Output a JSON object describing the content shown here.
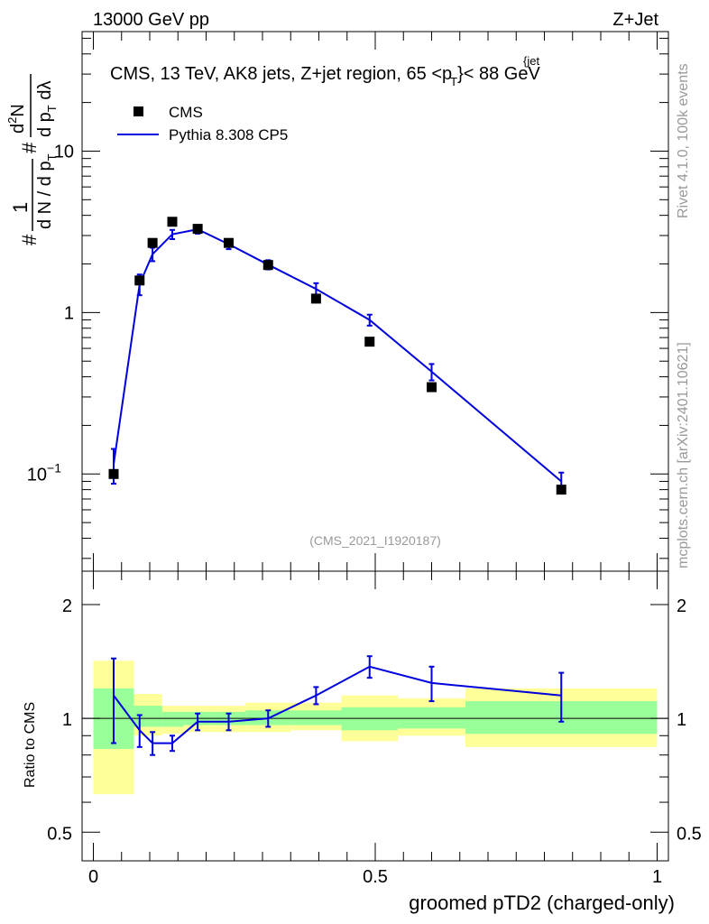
{
  "header": {
    "left": "13000 GeV pp",
    "right": "Z+Jet"
  },
  "side_labels": {
    "rivet": "Rivet 4.1.0,  100k events",
    "mcplots": "mcplots.cern.ch [arXiv:2401.10621]"
  },
  "chart_data": [
    {
      "type": "line",
      "panel": "main",
      "title_parts": {
        "main": "CMS, 13 TeV, AK8 jets, Z+jet region, 65 <p",
        "sub": "T",
        "sup": "{jet",
        "end": "}< 88 GeV"
      },
      "watermark": "(CMS_2021_I1920187)",
      "ylabel_parts": {
        "hash": "#",
        "one": "1",
        "den": "d N / d p",
        "den_sub": "T",
        "num_top": "d",
        "num_sup": "2",
        "num_N": "N",
        "num2": "d p",
        "num2_sub": "T",
        "num2_end": " dλ"
      },
      "yscale": "log",
      "ylim": [
        0.025,
        55
      ],
      "xlim": [
        -0.02,
        1.02
      ],
      "ytick_labels": [
        {
          "v": 0.1,
          "base": "10",
          "exp": "−1"
        },
        {
          "v": 1,
          "base": "1",
          "exp": ""
        },
        {
          "v": 10,
          "base": "10",
          "exp": ""
        }
      ],
      "legend": {
        "position": "top-left",
        "entries": [
          "CMS",
          "Pythia 8.308 CP5"
        ]
      },
      "cms_points": [
        {
          "x": 0.036,
          "y": 0.1
        },
        {
          "x": 0.082,
          "y": 1.58
        },
        {
          "x": 0.105,
          "y": 2.7
        },
        {
          "x": 0.14,
          "y": 3.65
        },
        {
          "x": 0.185,
          "y": 3.3
        },
        {
          "x": 0.24,
          "y": 2.7
        },
        {
          "x": 0.31,
          "y": 1.97
        },
        {
          "x": 0.395,
          "y": 1.22
        },
        {
          "x": 0.49,
          "y": 0.66
        },
        {
          "x": 0.6,
          "y": 0.345
        },
        {
          "x": 0.83,
          "y": 0.08
        }
      ],
      "pythia": [
        {
          "x": 0.036,
          "y": 0.115,
          "err": 0.028
        },
        {
          "x": 0.082,
          "y": 1.5,
          "err": 0.22
        },
        {
          "x": 0.105,
          "y": 2.3,
          "err": 0.22
        },
        {
          "x": 0.14,
          "y": 3.05,
          "err": 0.2
        },
        {
          "x": 0.185,
          "y": 3.28,
          "err": 0.2
        },
        {
          "x": 0.24,
          "y": 2.65,
          "err": 0.18
        },
        {
          "x": 0.31,
          "y": 1.98,
          "err": 0.13
        },
        {
          "x": 0.395,
          "y": 1.4,
          "err": 0.12
        },
        {
          "x": 0.49,
          "y": 0.9,
          "err": 0.07
        },
        {
          "x": 0.6,
          "y": 0.43,
          "err": 0.05
        },
        {
          "x": 0.83,
          "y": 0.09,
          "err": 0.012
        }
      ]
    },
    {
      "type": "line",
      "panel": "ratio",
      "ylabel": "Ratio to CMS",
      "xlabel": "groomed pTD2 (charged-only)",
      "yscale": "log",
      "ylim": [
        0.42,
        2.45
      ],
      "xlim": [
        -0.02,
        1.02
      ],
      "ytick_labels": [
        {
          "v": 0.5,
          "label": "0.5"
        },
        {
          "v": 1,
          "label": "1"
        },
        {
          "v": 2,
          "label": "2"
        }
      ],
      "xtick_labels": [
        {
          "v": 0,
          "label": "0"
        },
        {
          "v": 0.5,
          "label": "0.5"
        },
        {
          "v": 1,
          "label": "1"
        }
      ],
      "bands": [
        {
          "x0": 0.0,
          "x1": 0.072,
          "y_lo": 0.63,
          "y_hi": 1.42,
          "g_lo": 0.83,
          "g_hi": 1.2
        },
        {
          "x0": 0.072,
          "x1": 0.122,
          "y_lo": 0.9,
          "y_hi": 1.16,
          "g_lo": 0.95,
          "g_hi": 1.08
        },
        {
          "x0": 0.122,
          "x1": 0.16,
          "y_lo": 0.91,
          "y_hi": 1.08,
          "g_lo": 0.95,
          "g_hi": 1.04
        },
        {
          "x0": 0.16,
          "x1": 0.21,
          "y_lo": 0.92,
          "y_hi": 1.08,
          "g_lo": 0.96,
          "g_hi": 1.04
        },
        {
          "x0": 0.21,
          "x1": 0.27,
          "y_lo": 0.92,
          "y_hi": 1.08,
          "g_lo": 0.96,
          "g_hi": 1.04
        },
        {
          "x0": 0.27,
          "x1": 0.35,
          "y_lo": 0.92,
          "y_hi": 1.1,
          "g_lo": 0.96,
          "g_hi": 1.05
        },
        {
          "x0": 0.35,
          "x1": 0.44,
          "y_lo": 0.93,
          "y_hi": 1.1,
          "g_lo": 0.96,
          "g_hi": 1.05
        },
        {
          "x0": 0.44,
          "x1": 0.54,
          "y_lo": 0.87,
          "y_hi": 1.15,
          "g_lo": 0.93,
          "g_hi": 1.07
        },
        {
          "x0": 0.54,
          "x1": 0.66,
          "y_lo": 0.9,
          "y_hi": 1.13,
          "g_lo": 0.94,
          "g_hi": 1.07
        },
        {
          "x0": 0.66,
          "x1": 1.0,
          "y_lo": 0.84,
          "y_hi": 1.2,
          "g_lo": 0.91,
          "g_hi": 1.11
        }
      ],
      "ratio_points": [
        {
          "x": 0.036,
          "y": 1.15,
          "err": 0.29
        },
        {
          "x": 0.082,
          "y": 0.93,
          "err": 0.09
        },
        {
          "x": 0.105,
          "y": 0.86,
          "err": 0.06
        },
        {
          "x": 0.14,
          "y": 0.86,
          "err": 0.04
        },
        {
          "x": 0.185,
          "y": 0.98,
          "err": 0.05
        },
        {
          "x": 0.24,
          "y": 0.98,
          "err": 0.05
        },
        {
          "x": 0.31,
          "y": 1.0,
          "err": 0.05
        },
        {
          "x": 0.395,
          "y": 1.15,
          "err": 0.06
        },
        {
          "x": 0.49,
          "y": 1.37,
          "err": 0.09
        },
        {
          "x": 0.6,
          "y": 1.24,
          "err": 0.13
        },
        {
          "x": 0.83,
          "y": 1.15,
          "err": 0.17
        }
      ]
    }
  ],
  "colors": {
    "mc": "#0000dd",
    "data": "#000000",
    "band_outer": "#ffff99",
    "band_inner": "#99ff99",
    "grey": "#999999"
  }
}
